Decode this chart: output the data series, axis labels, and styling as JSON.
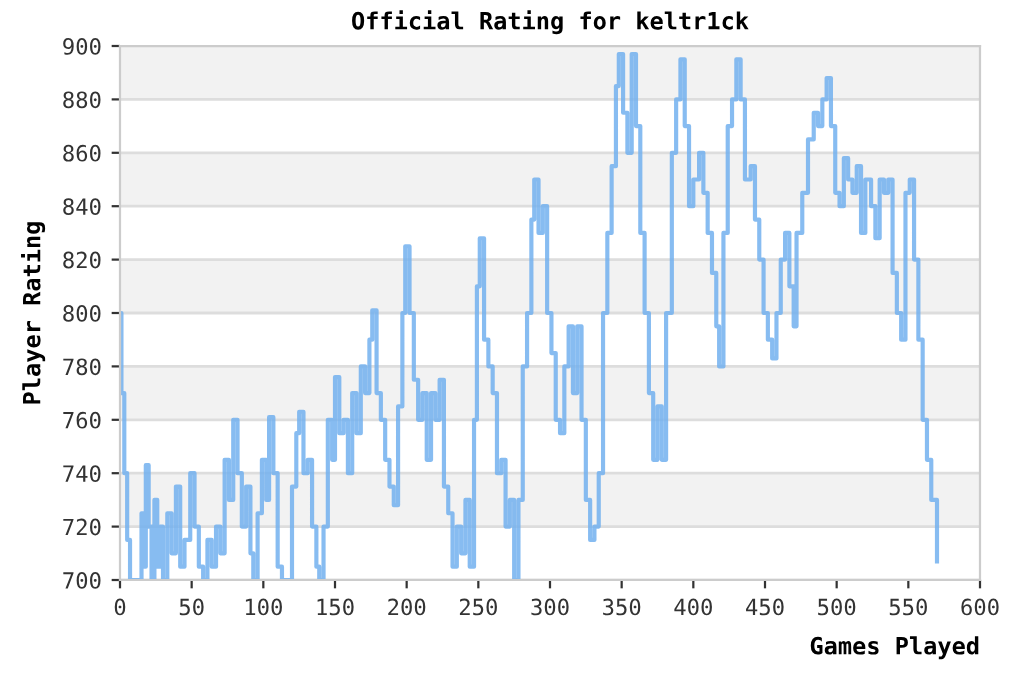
{
  "chart_data": {
    "type": "step",
    "title": "Official Rating for keltr1ck",
    "xlabel": "Games Played",
    "ylabel": "Player Rating",
    "xlim": [
      0,
      600
    ],
    "xticks": [
      0,
      50,
      100,
      150,
      200,
      250,
      300,
      350,
      400,
      450,
      500,
      550,
      600
    ],
    "ylim": [
      700,
      900
    ],
    "yticks": [
      700,
      720,
      740,
      760,
      780,
      800,
      820,
      840,
      860,
      880,
      900
    ],
    "grid": "y",
    "series": [
      {
        "color": "#72b0ee",
        "x": [
          0,
          1,
          3,
          5,
          7,
          12,
          15,
          17,
          18,
          20,
          22,
          24,
          26,
          28,
          30,
          33,
          36,
          39,
          42,
          45,
          49,
          52,
          55,
          58,
          61,
          64,
          67,
          70,
          73,
          76,
          79,
          82,
          85,
          88,
          91,
          93,
          96,
          99,
          102,
          104,
          107,
          110,
          113,
          117,
          120,
          123,
          125,
          128,
          131,
          134,
          137,
          139,
          142,
          145,
          148,
          150,
          153,
          156,
          159,
          162,
          165,
          168,
          171,
          174,
          176,
          179,
          182,
          185,
          188,
          191,
          194,
          197,
          199,
          202,
          205,
          208,
          211,
          214,
          217,
          220,
          223,
          226,
          229,
          232,
          235,
          238,
          241,
          244,
          247,
          249,
          251,
          254,
          257,
          260,
          263,
          266,
          269,
          272,
          275,
          278,
          281,
          284,
          287,
          289,
          292,
          295,
          298,
          301,
          304,
          307,
          310,
          313,
          316,
          319,
          322,
          325,
          328,
          331,
          334,
          337,
          340,
          343,
          346,
          348,
          351,
          354,
          357,
          360,
          363,
          366,
          369,
          372,
          375,
          378,
          381,
          385,
          388,
          391,
          394,
          397,
          400,
          404,
          407,
          410,
          413,
          416,
          418,
          421,
          424,
          427,
          430,
          433,
          436,
          440,
          443,
          446,
          449,
          452,
          455,
          458,
          461,
          464,
          467,
          470,
          472,
          476,
          480,
          484,
          487,
          490,
          493,
          496,
          499,
          502,
          505,
          508,
          511,
          514,
          517,
          520,
          524,
          527,
          530,
          533,
          536,
          539,
          542,
          545,
          548,
          551,
          554,
          557,
          560,
          563,
          566,
          570
        ],
        "values": [
          800,
          770,
          740,
          715,
          700,
          700,
          725,
          705,
          743,
          720,
          700,
          730,
          705,
          720,
          700,
          725,
          710,
          735,
          705,
          715,
          740,
          720,
          705,
          700,
          715,
          705,
          720,
          710,
          745,
          730,
          760,
          740,
          720,
          735,
          710,
          700,
          725,
          745,
          730,
          761,
          740,
          705,
          700,
          700,
          735,
          755,
          763,
          740,
          745,
          720,
          705,
          700,
          720,
          760,
          745,
          776,
          755,
          760,
          740,
          770,
          755,
          780,
          770,
          790,
          801,
          770,
          760,
          745,
          735,
          728,
          765,
          800,
          825,
          800,
          775,
          760,
          770,
          745,
          770,
          760,
          775,
          735,
          725,
          705,
          720,
          710,
          730,
          705,
          760,
          810,
          828,
          790,
          780,
          770,
          740,
          745,
          720,
          730,
          700,
          730,
          780,
          800,
          835,
          850,
          830,
          840,
          800,
          785,
          760,
          755,
          780,
          795,
          770,
          795,
          760,
          730,
          715,
          720,
          740,
          800,
          830,
          855,
          885,
          897,
          875,
          860,
          897,
          870,
          830,
          800,
          770,
          745,
          765,
          745,
          800,
          860,
          880,
          895,
          870,
          840,
          850,
          860,
          845,
          830,
          815,
          795,
          780,
          830,
          870,
          880,
          895,
          880,
          850,
          855,
          835,
          820,
          800,
          790,
          783,
          800,
          820,
          830,
          810,
          795,
          830,
          845,
          865,
          875,
          870,
          880,
          888,
          870,
          845,
          840,
          858,
          850,
          845,
          855,
          830,
          850,
          840,
          828,
          850,
          845,
          850,
          815,
          800,
          790,
          845,
          850,
          820,
          790,
          760,
          745,
          730,
          707
        ]
      }
    ]
  }
}
